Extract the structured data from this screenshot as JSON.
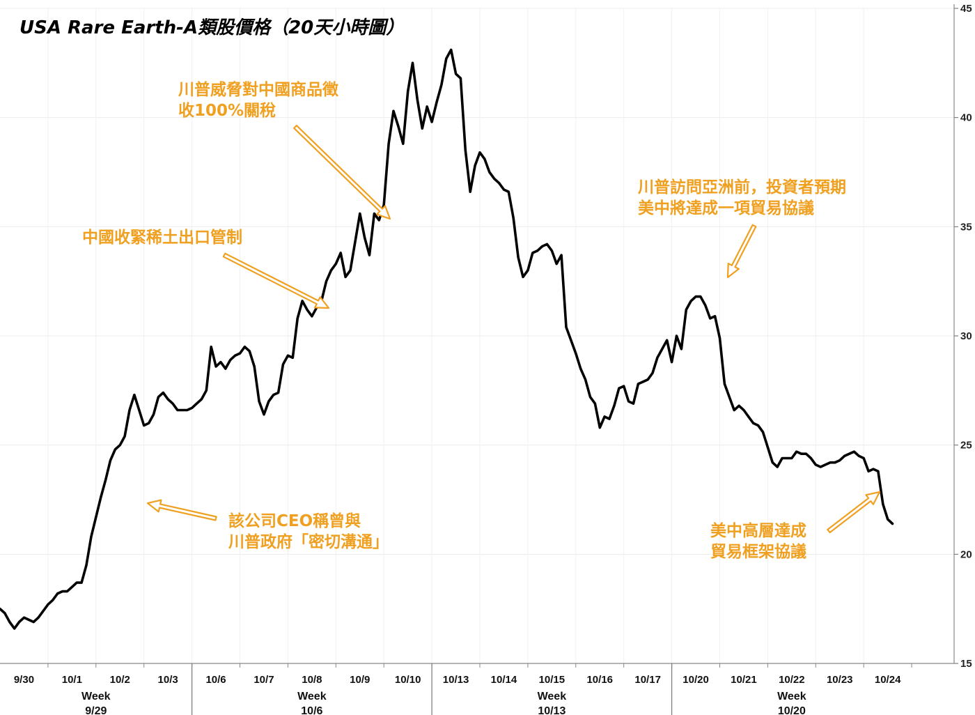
{
  "chart_data": {
    "type": "line",
    "title": "USA Rare Earth-A類股價格（20天小時圖）",
    "xlabel": "",
    "ylabel": "",
    "ylim": [
      15,
      45
    ],
    "y_ticks": [
      15,
      20,
      25,
      30,
      35,
      40,
      45
    ],
    "grid": true,
    "line_color": "#000000",
    "annotation_color": "#f0a020",
    "day_labels": [
      "9/30",
      "10/1",
      "10/2",
      "10/3",
      "10/6",
      "10/7",
      "10/8",
      "10/9",
      "10/10",
      "10/13",
      "10/14",
      "10/15",
      "10/16",
      "10/17",
      "10/20",
      "10/21",
      "10/22",
      "10/23",
      "10/24"
    ],
    "week_groups": [
      {
        "word": "Week",
        "date": "9/29"
      },
      {
        "word": "Week",
        "date": "10/6"
      },
      {
        "word": "Week",
        "date": "10/13"
      },
      {
        "word": "Week",
        "date": "10/20"
      }
    ],
    "series": [
      {
        "name": "USA Rare Earth-A",
        "x": [
          0,
          0.1,
          0.2,
          0.3,
          0.4,
          0.5,
          0.6,
          0.7,
          0.8,
          0.9,
          1.0,
          1.1,
          1.2,
          1.3,
          1.4,
          1.5,
          1.6,
          1.7,
          1.8,
          1.9,
          2.0,
          2.1,
          2.2,
          2.3,
          2.4,
          2.5,
          2.6,
          2.7,
          2.8,
          2.9,
          3.0,
          3.1,
          3.2,
          3.3,
          3.4,
          3.5,
          3.6,
          3.7,
          3.8,
          3.9,
          4.0,
          4.1,
          4.2,
          4.3,
          4.4,
          4.5,
          4.6,
          4.7,
          4.8,
          4.9,
          5.0,
          5.1,
          5.2,
          5.3,
          5.4,
          5.5,
          5.6,
          5.7,
          5.8,
          5.9,
          6.0,
          6.1,
          6.2,
          6.3,
          6.4,
          6.5,
          6.6,
          6.7,
          6.8,
          6.9,
          7.0,
          7.1,
          7.2,
          7.3,
          7.4,
          7.5,
          7.6,
          7.7,
          7.8,
          7.9,
          8.0,
          8.1,
          8.2,
          8.3,
          8.4,
          8.5,
          8.6,
          8.7,
          8.8,
          8.9,
          9.0,
          9.1,
          9.2,
          9.3,
          9.4,
          9.5,
          9.6,
          9.7,
          9.8,
          9.9,
          10.0,
          10.1,
          10.2,
          10.3,
          10.4,
          10.5,
          10.6,
          10.7,
          10.8,
          10.9,
          11.0,
          11.1,
          11.2,
          11.3,
          11.4,
          11.5,
          11.6,
          11.7,
          11.8,
          11.9,
          12.0,
          12.1,
          12.2,
          12.3,
          12.4,
          12.5,
          12.6,
          12.7,
          12.8,
          12.9,
          13.0,
          13.1,
          13.2,
          13.3,
          13.4,
          13.5,
          13.6,
          13.7,
          13.8,
          13.9,
          14.0,
          14.1,
          14.2,
          14.3,
          14.4,
          14.5,
          14.6,
          14.7,
          14.8,
          14.9,
          15.0,
          15.1,
          15.2,
          15.3,
          15.4,
          15.5,
          15.6,
          15.7,
          15.8,
          15.9,
          16.0,
          16.1,
          16.2,
          16.3,
          16.4,
          16.5,
          16.6,
          16.7,
          16.8,
          16.9,
          17.0,
          17.1,
          17.2,
          17.3,
          17.4,
          17.5,
          17.6,
          17.7,
          17.8,
          17.9,
          18.0,
          18.1,
          18.2,
          18.3,
          18.4,
          18.5,
          18.6
        ],
        "values": [
          17.5,
          17.3,
          16.9,
          16.6,
          16.9,
          17.1,
          17.0,
          16.9,
          17.1,
          17.4,
          17.7,
          17.9,
          18.2,
          18.3,
          18.3,
          18.5,
          18.7,
          18.7,
          19.5,
          20.8,
          21.7,
          22.6,
          23.4,
          24.3,
          24.8,
          25.0,
          25.4,
          26.6,
          27.3,
          26.6,
          25.9,
          26.0,
          26.4,
          27.2,
          27.4,
          27.1,
          26.9,
          26.6,
          26.6,
          26.6,
          26.7,
          26.9,
          27.1,
          27.5,
          29.5,
          28.6,
          28.8,
          28.5,
          28.9,
          29.1,
          29.2,
          29.5,
          29.3,
          28.6,
          27.0,
          26.4,
          27.0,
          27.3,
          27.4,
          28.7,
          29.1,
          29.0,
          30.8,
          31.6,
          31.2,
          30.9,
          31.3,
          31.6,
          32.5,
          33.0,
          33.3,
          33.8,
          32.7,
          33.0,
          34.3,
          35.6,
          34.5,
          33.7,
          35.6,
          35.3,
          36.0,
          38.8,
          40.3,
          39.6,
          38.8,
          41.2,
          42.5,
          40.8,
          39.5,
          40.5,
          39.8,
          40.7,
          41.5,
          42.7,
          43.1,
          42.0,
          41.8,
          38.5,
          36.6,
          37.8,
          38.4,
          38.1,
          37.5,
          37.2,
          37.0,
          36.7,
          36.6,
          35.4,
          33.6,
          32.7,
          33.0,
          33.8,
          33.9,
          34.1,
          34.2,
          33.9,
          33.3,
          33.7,
          30.4,
          29.8,
          29.2,
          28.5,
          28.0,
          27.2,
          26.9,
          25.8,
          26.3,
          26.2,
          26.8,
          27.6,
          27.7,
          27.0,
          26.9,
          27.8,
          27.9,
          28.0,
          28.3,
          29.0,
          29.4,
          29.8,
          28.8,
          30.0,
          29.4,
          31.2,
          31.6,
          31.8,
          31.8,
          31.4,
          30.8,
          30.9,
          29.9,
          27.8,
          27.2,
          26.6,
          26.8,
          26.6,
          26.3,
          26.0,
          25.9,
          25.6,
          24.9,
          24.2,
          24.0,
          24.4,
          24.4,
          24.4,
          24.7,
          24.6,
          24.6,
          24.4,
          24.1,
          24.0,
          24.1,
          24.2,
          24.2,
          24.3,
          24.5,
          24.6,
          24.7,
          24.5,
          24.4,
          23.8,
          23.9,
          23.8,
          22.3,
          21.6,
          21.4
        ]
      }
    ],
    "annotations": [
      {
        "lines": [
          "川普威脅對中國商品徵",
          "收100%關稅"
        ]
      },
      {
        "lines": [
          "中國收緊稀土出口管制"
        ]
      },
      {
        "lines": [
          "川普訪問亞洲前，投資者預期",
          "美中將達成一項貿易協議"
        ]
      },
      {
        "lines": [
          "該公司CEO稱曾與",
          "川普政府「密切溝通」"
        ]
      },
      {
        "lines": [
          "美中高層達成",
          "貿易框架協議"
        ]
      }
    ]
  }
}
